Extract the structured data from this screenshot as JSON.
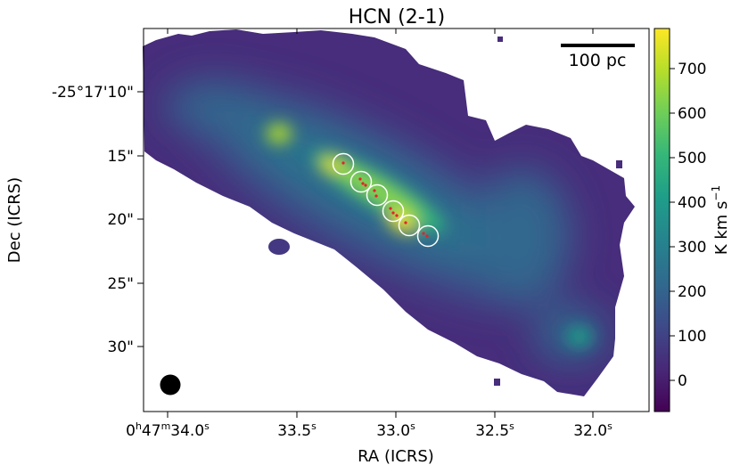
{
  "chart_data": {
    "type": "heatmap",
    "title": "HCN (2-1)",
    "xlabel": "RA (ICRS)",
    "ylabel": "Dec (ICRS)",
    "x_ticks": [
      {
        "sup_h": "h",
        "sup_m": "m",
        "sup_s": "s",
        "text_h": "0",
        "text_m": "47",
        "text_s": "34.0"
      },
      {
        "sup_s": "s",
        "text_s": "33.5"
      },
      {
        "sup_s": "s",
        "text_s": "33.0"
      },
      {
        "sup_s": "s",
        "text_s": "32.5"
      },
      {
        "sup_s": "s",
        "text_s": "32.0"
      }
    ],
    "y_ticks": [
      "-25°17'10\"",
      "15\"",
      "20\"",
      "25\"",
      "30\""
    ],
    "colorbar": {
      "label_main": "K km s",
      "label_sup": "−1",
      "ticks": [
        0,
        100,
        200,
        300,
        400,
        500,
        600,
        700
      ],
      "vmin": -70,
      "vmax": 790,
      "colormap": "viridis",
      "colors": [
        "#440154",
        "#482878",
        "#3e4989",
        "#31688e",
        "#26828e",
        "#1f9e89",
        "#35b779",
        "#6ece58",
        "#b5de2b",
        "#fde725"
      ]
    },
    "scalebar_label": "100 pc",
    "beam_shape": "circle",
    "circle_markers": 6,
    "peaks": [
      {
        "ra": "0h47m33.7s",
        "dec": "-25°17'13.5\"",
        "value": 690
      },
      {
        "ra": "0h47m33.3s",
        "dec": "-25°17'16\"",
        "value": 790
      },
      {
        "ra": "0h47m32.9s",
        "dec": "-25°17'20\"",
        "value": 740
      },
      {
        "ra": "0h47m31.9s",
        "dec": "-25°17'29\"",
        "value": 300
      }
    ],
    "grid": false
  }
}
